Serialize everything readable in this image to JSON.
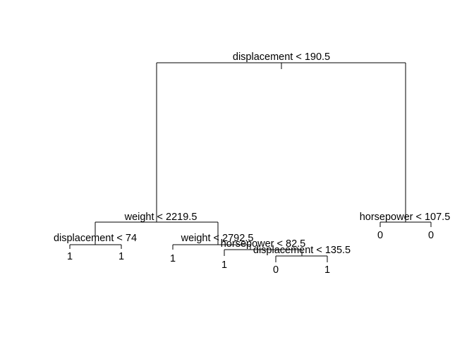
{
  "tree": {
    "nodes": {
      "root": {
        "label": "displacement < 190.5"
      },
      "n_l": {
        "label": "weight < 2219.5"
      },
      "n_r": {
        "label": "horsepower < 107.5"
      },
      "n_ll": {
        "label": "displacement < 74"
      },
      "n_lr": {
        "label": "weight < 2792.5"
      },
      "n_lrr": {
        "label": "horsepower < 82.5"
      },
      "n_lrrr": {
        "label": "displacement < 135.5"
      }
    },
    "leaves": {
      "leaf_ll_l": "1",
      "leaf_ll_r": "1",
      "leaf_lr_l": "1",
      "leaf_lrr_l": "1",
      "leaf_lrrr_l": "0",
      "leaf_lrrr_r": "1",
      "leaf_r_l": "0",
      "leaf_r_r": "0"
    }
  }
}
